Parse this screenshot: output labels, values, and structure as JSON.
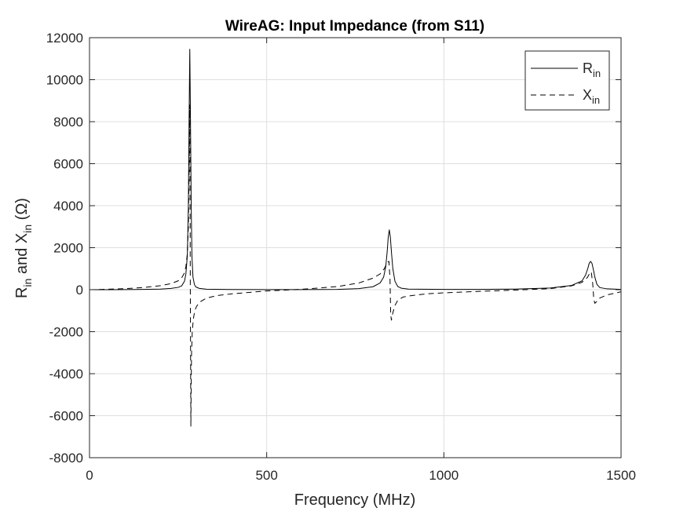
{
  "chart_data": {
    "type": "line",
    "title": "WireAG: Input Impedance (from S11)",
    "xlabel": "Frequency (MHz)",
    "ylabel": {
      "r_main": "R",
      "r_sub": "in",
      "mid": " and X",
      "x_sub": "in",
      "unit": " (Ω)"
    },
    "xlim": [
      0,
      1500
    ],
    "ylim": [
      -8000,
      12000
    ],
    "xticks": [
      0,
      500,
      1000,
      1500
    ],
    "yticks": [
      -8000,
      -6000,
      -4000,
      -2000,
      0,
      2000,
      4000,
      6000,
      8000,
      10000,
      12000
    ],
    "grid": true,
    "legend_position": "top-right",
    "legend": [
      {
        "main": "R",
        "sub": "in",
        "style": "solid"
      },
      {
        "main": "X",
        "sub": "in",
        "style": "dashed"
      }
    ],
    "series": [
      {
        "style": "solid",
        "x": [
          0,
          50,
          100,
          150,
          200,
          230,
          250,
          260,
          268,
          272,
          276,
          279,
          281,
          283,
          285,
          287,
          289,
          292,
          296,
          300,
          310,
          330,
          400,
          500,
          600,
          700,
          760,
          800,
          820,
          830,
          836,
          840,
          843,
          846,
          849,
          852,
          856,
          862,
          870,
          880,
          900,
          1000,
          1100,
          1200,
          1300,
          1360,
          1390,
          1400,
          1406,
          1410,
          1414,
          1418,
          1422,
          1426,
          1432,
          1440,
          1460,
          1500
        ],
        "y": [
          0,
          2,
          5,
          12,
          30,
          60,
          110,
          180,
          400,
          750,
          1600,
          4000,
          8000,
          11450,
          8000,
          4000,
          1600,
          600,
          250,
          130,
          60,
          25,
          8,
          4,
          5,
          15,
          50,
          140,
          320,
          600,
          1100,
          1800,
          2500,
          2850,
          2500,
          1800,
          1000,
          400,
          150,
          70,
          30,
          12,
          15,
          30,
          80,
          200,
          420,
          700,
          1000,
          1250,
          1350,
          1250,
          950,
          600,
          250,
          100,
          40,
          15
        ]
      },
      {
        "style": "dashed",
        "x": [
          0,
          50,
          100,
          150,
          200,
          230,
          250,
          260,
          268,
          272,
          276,
          279,
          281,
          283,
          284.5,
          286,
          287,
          288,
          290,
          293,
          297,
          302,
          310,
          330,
          360,
          400,
          500,
          600,
          700,
          760,
          800,
          820,
          832,
          840,
          845,
          848,
          850,
          852,
          856,
          862,
          870,
          885,
          900,
          950,
          1000,
          1100,
          1200,
          1300,
          1360,
          1390,
          1405,
          1412,
          1416,
          1420,
          1423,
          1426,
          1432,
          1440,
          1460,
          1500
        ],
        "y": [
          0,
          20,
          50,
          100,
          190,
          290,
          420,
          560,
          800,
          1100,
          1700,
          3000,
          5500,
          8800,
          0,
          -6500,
          -4500,
          -3000,
          -2000,
          -1400,
          -1000,
          -800,
          -600,
          -400,
          -280,
          -200,
          -60,
          20,
          150,
          320,
          550,
          750,
          1000,
          1300,
          1350,
          500,
          -1200,
          -1450,
          -1100,
          -750,
          -500,
          -350,
          -300,
          -200,
          -150,
          -80,
          -20,
          50,
          180,
          350,
          580,
          800,
          850,
          300,
          -450,
          -650,
          -550,
          -400,
          -250,
          -100
        ]
      }
    ]
  }
}
